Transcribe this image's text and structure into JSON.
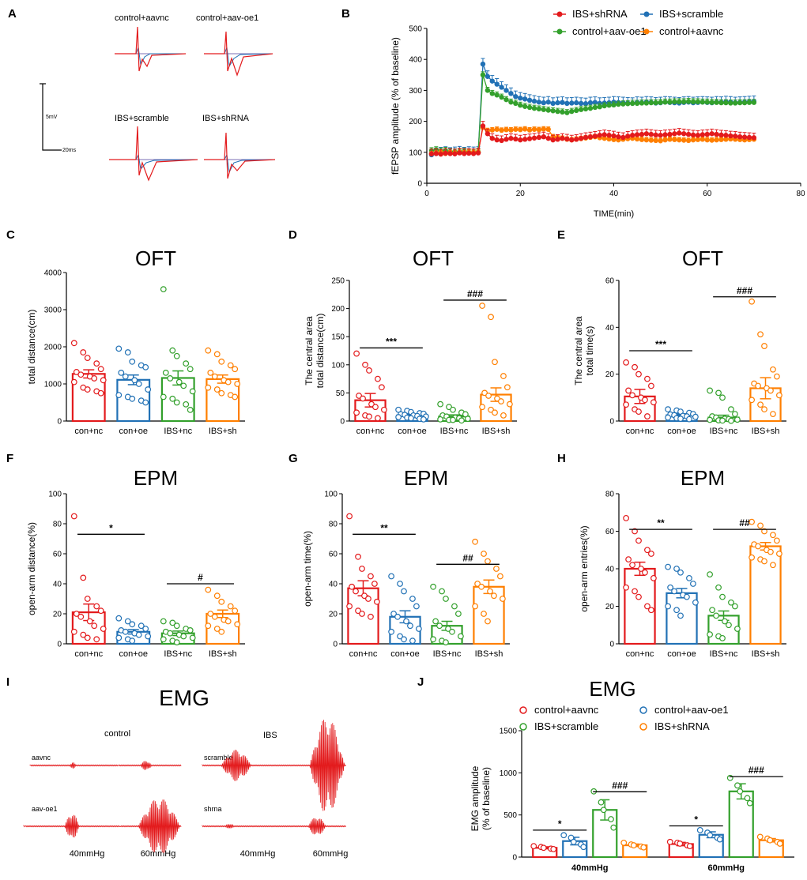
{
  "colors": {
    "red": "#e31a1c",
    "blue": "#2171b5",
    "green": "#33a02c",
    "orange": "#ff7f00",
    "purple": "#7b6fb5",
    "black": "#000000"
  },
  "panels": {
    "A": {
      "letter": "A",
      "labels": [
        "control+aavnc",
        "control+aav-oe1",
        "IBS+scramble",
        "IBS+shRNA"
      ],
      "scale_v": "5mV",
      "scale_t": "20ms"
    },
    "I": {
      "letter": "I",
      "title": "EMG",
      "group_control": "control",
      "group_ibs": "IBS",
      "trace_labels": [
        "aavnc",
        "scramble",
        "aav-oe1",
        "shrna"
      ],
      "pressure_labels": [
        "40mmHg",
        "60mmHg",
        "40mmHg",
        "60mmHg"
      ]
    }
  },
  "chart_data": [
    {
      "id": "B",
      "letter": "B",
      "type": "line",
      "title": "",
      "xlabel": "TIME(min)",
      "ylabel": "fEPSP amplitude (% of baseline)",
      "xlim": [
        0,
        80
      ],
      "ylim": [
        0,
        500
      ],
      "xticks": [
        0,
        20,
        40,
        60,
        80
      ],
      "yticks": [
        0,
        100,
        200,
        300,
        400,
        500
      ],
      "legend": [
        "IBS+shRNA",
        "IBS+scramble",
        "control+aav-oe1",
        "control+aavnc"
      ],
      "series": [
        {
          "name": "IBS+scramble",
          "color": "blue",
          "x_start": 1,
          "x_step": 1,
          "err": 18,
          "values": [
            92,
            96,
            98,
            100,
            97,
            99,
            101,
            98,
            100,
            99,
            100,
            385,
            345,
            330,
            320,
            310,
            300,
            290,
            280,
            275,
            272,
            268,
            265,
            262,
            260,
            262,
            258,
            260,
            261,
            258,
            259,
            260,
            258,
            257,
            260,
            261,
            258,
            259,
            260,
            262,
            261,
            260,
            259,
            258,
            261,
            260,
            262,
            261,
            259,
            260,
            262,
            261,
            260,
            259,
            261,
            262,
            260,
            261,
            262,
            261,
            260,
            262,
            261,
            263,
            262,
            260,
            261,
            262,
            263,
            264
          ]
        },
        {
          "name": "control+aav-oe1",
          "color": "green",
          "x_start": 1,
          "x_step": 1,
          "err": 10,
          "values": [
            105,
            108,
            104,
            106,
            102,
            101,
            100,
            103,
            99,
            100,
            101,
            350,
            300,
            290,
            285,
            278,
            270,
            262,
            258,
            252,
            248,
            245,
            242,
            240,
            238,
            236,
            234,
            232,
            230,
            228,
            232,
            235,
            238,
            240,
            242,
            245,
            247,
            250,
            252,
            253,
            255,
            256,
            257,
            258,
            258,
            259,
            259,
            260,
            260,
            261,
            262,
            262,
            263,
            263,
            263,
            264,
            263,
            263,
            262,
            262,
            261,
            261,
            260,
            260,
            259,
            259,
            260,
            260,
            261,
            261
          ]
        },
        {
          "name": "control+aavnc",
          "color": "orange",
          "x_start": 1,
          "x_step": 1,
          "err": 8,
          "values": [
            95,
            97,
            99,
            96,
            98,
            97,
            99,
            98,
            100,
            99,
            100,
            180,
            170,
            172,
            174,
            171,
            173,
            172,
            174,
            173,
            175,
            172,
            174,
            173,
            175,
            174,
            150,
            148,
            145,
            142,
            140,
            142,
            144,
            146,
            148,
            150,
            147,
            145,
            143,
            141,
            140,
            142,
            144,
            145,
            143,
            141,
            140,
            139,
            138,
            137,
            140,
            142,
            141,
            140,
            139,
            138,
            140,
            141,
            142,
            140,
            139,
            140,
            141,
            142,
            143,
            142,
            141,
            140,
            141,
            142
          ]
        },
        {
          "name": "IBS+shRNA",
          "color": "red",
          "x_start": 1,
          "x_step": 1,
          "err": 15,
          "values": [
            95,
            96,
            94,
            97,
            96,
            95,
            98,
            96,
            97,
            96,
            98,
            185,
            160,
            145,
            140,
            138,
            142,
            145,
            143,
            140,
            142,
            144,
            146,
            148,
            150,
            145,
            140,
            142,
            145,
            143,
            140,
            142,
            145,
            148,
            150,
            152,
            155,
            157,
            155,
            153,
            150,
            148,
            152,
            155,
            157,
            158,
            160,
            158,
            156,
            155,
            157,
            158,
            160,
            162,
            160,
            158,
            156,
            155,
            157,
            158,
            160,
            158,
            156,
            155,
            153,
            152,
            150,
            149,
            148,
            147
          ]
        }
      ]
    },
    {
      "id": "C",
      "letter": "C",
      "type": "bar",
      "title": "OFT",
      "ylabel": [
        "total distance(cm)"
      ],
      "ylim": [
        0,
        4000
      ],
      "yticks": [
        0,
        1000,
        2000,
        3000,
        4000
      ],
      "categories": [
        "con+nc",
        "con+oe",
        "IBS+nc",
        "IBS+sh"
      ],
      "values": [
        1270,
        1110,
        1160,
        1130
      ],
      "sem": [
        110,
        130,
        190,
        110
      ],
      "points": [
        [
          2100,
          1850,
          1700,
          1550,
          1400,
          1320,
          1250,
          1200,
          1150,
          1100,
          1050,
          900,
          850,
          800,
          750
        ],
        [
          1950,
          1850,
          1600,
          1500,
          1450,
          1300,
          1200,
          1100,
          1000,
          850,
          700,
          650,
          600,
          550,
          500
        ],
        [
          3550,
          1900,
          1750,
          1550,
          1400,
          1300,
          1150,
          1050,
          950,
          800,
          650,
          600,
          500,
          450,
          300
        ],
        [
          1900,
          1800,
          1600,
          1500,
          1400,
          1300,
          1200,
          1100,
          1050,
          1000,
          900,
          850,
          750,
          700,
          650
        ]
      ],
      "brackets": []
    },
    {
      "id": "D",
      "letter": "D",
      "type": "bar",
      "title": "OFT",
      "ylabel": [
        "The central area",
        "total distance(cm)"
      ],
      "ylim": [
        0,
        250
      ],
      "yticks": [
        0,
        50,
        100,
        150,
        200,
        250
      ],
      "categories": [
        "con+nc",
        "con+oe",
        "IBS+nc",
        "IBS+sh"
      ],
      "values": [
        37,
        10,
        8,
        47
      ],
      "sem": [
        12,
        2,
        3,
        12
      ],
      "points": [
        [
          120,
          100,
          90,
          75,
          60,
          45,
          40,
          30,
          25,
          20,
          15,
          10,
          8,
          5
        ],
        [
          20,
          18,
          16,
          14,
          13,
          12,
          11,
          10,
          9,
          8,
          7,
          6,
          5,
          4,
          3
        ],
        [
          30,
          25,
          20,
          15,
          12,
          10,
          8,
          6,
          5,
          4,
          3,
          2,
          2,
          1
        ],
        [
          205,
          185,
          105,
          80,
          60,
          50,
          45,
          40,
          35,
          30,
          25,
          20,
          15,
          10
        ]
      ],
      "brackets": [
        {
          "from": 0,
          "to": 1,
          "y": 130,
          "label": "***"
        },
        {
          "from": 2,
          "to": 3,
          "y": 215,
          "label": "###"
        }
      ]
    },
    {
      "id": "E",
      "letter": "E",
      "type": "bar",
      "title": "OFT",
      "ylabel": [
        "The central area",
        "total time(s)"
      ],
      "ylim": [
        0,
        60
      ],
      "yticks": [
        0,
        20,
        40,
        60
      ],
      "categories": [
        "con+nc",
        "con+oe",
        "IBS+nc",
        "IBS+sh"
      ],
      "values": [
        10.5,
        2.5,
        1.5,
        14
      ],
      "sem": [
        3,
        0.6,
        1,
        4.5
      ],
      "points": [
        [
          25,
          23,
          20,
          18,
          15,
          13,
          11,
          10,
          9,
          8,
          7,
          5,
          4,
          2
        ],
        [
          5,
          4.5,
          4,
          3.5,
          3,
          2.8,
          2.5,
          2.2,
          2,
          1.8,
          1.5,
          1.2,
          1,
          0.8
        ],
        [
          13,
          12,
          10,
          5,
          3,
          2,
          1.5,
          1,
          0.8,
          0.6,
          0.5,
          0.3,
          0.2,
          0.1
        ],
        [
          51,
          37,
          32,
          22,
          19,
          16,
          15,
          14,
          13,
          11,
          9,
          7,
          5,
          3
        ]
      ],
      "brackets": [
        {
          "from": 0,
          "to": 1,
          "y": 30,
          "label": "***"
        },
        {
          "from": 2,
          "to": 3,
          "y": 53,
          "label": "###"
        }
      ]
    },
    {
      "id": "F",
      "letter": "F",
      "type": "bar",
      "title": "EPM",
      "ylabel": [
        "open-arm distance(%)"
      ],
      "ylim": [
        0,
        100
      ],
      "yticks": [
        0,
        20,
        40,
        60,
        80,
        100
      ],
      "categories": [
        "con+nc",
        "con+oe",
        "IBS+nc",
        "IBS+sh"
      ],
      "values": [
        21,
        8,
        7,
        20
      ],
      "sem": [
        5.5,
        1.5,
        1.5,
        2.5
      ],
      "points": [
        [
          85,
          44,
          30,
          25,
          22,
          20,
          18,
          15,
          12,
          10,
          8,
          6,
          4,
          3
        ],
        [
          17,
          15,
          13,
          12,
          10,
          9,
          8,
          7,
          6,
          5,
          4,
          3,
          2
        ],
        [
          15,
          14,
          12,
          10,
          9,
          8,
          7,
          6,
          5,
          4,
          3,
          2,
          1
        ],
        [
          36,
          32,
          28,
          25,
          22,
          20,
          18,
          16,
          15,
          13,
          12,
          10,
          8
        ]
      ],
      "brackets": [
        {
          "from": 0,
          "to": 1,
          "y": 73,
          "label": "*"
        },
        {
          "from": 2,
          "to": 3,
          "y": 40,
          "label": "#"
        }
      ]
    },
    {
      "id": "G",
      "letter": "G",
      "type": "bar",
      "title": "EPM",
      "ylabel": [
        "open-arm time(%)"
      ],
      "ylim": [
        0,
        100
      ],
      "yticks": [
        0,
        20,
        40,
        60,
        80,
        100
      ],
      "categories": [
        "con+nc",
        "con+oe",
        "IBS+nc",
        "IBS+sh"
      ],
      "values": [
        37,
        18,
        12,
        38
      ],
      "sem": [
        5,
        4,
        3,
        4.5
      ],
      "points": [
        [
          85,
          58,
          50,
          45,
          40,
          38,
          35,
          32,
          30,
          28,
          25,
          22,
          20,
          18
        ],
        [
          45,
          40,
          35,
          30,
          25,
          20,
          18,
          15,
          12,
          10,
          8,
          5,
          3,
          2
        ],
        [
          38,
          35,
          30,
          25,
          20,
          15,
          12,
          10,
          8,
          5,
          3,
          2,
          1
        ],
        [
          68,
          60,
          55,
          50,
          45,
          40,
          38,
          35,
          32,
          30,
          25,
          20,
          15
        ]
      ],
      "brackets": [
        {
          "from": 0,
          "to": 1,
          "y": 73,
          "label": "**"
        },
        {
          "from": 2,
          "to": 3,
          "y": 53,
          "label": "##"
        }
      ]
    },
    {
      "id": "H",
      "letter": "H",
      "type": "bar",
      "title": "EPM",
      "ylabel": [
        "open-arm entries(%)"
      ],
      "ylim": [
        0,
        80
      ],
      "yticks": [
        0,
        20,
        40,
        60,
        80
      ],
      "categories": [
        "con+nc",
        "con+oe",
        "IBS+nc",
        "IBS+sh"
      ],
      "values": [
        40,
        27,
        15,
        52
      ],
      "sem": [
        3.5,
        2.5,
        2.5,
        2
      ],
      "points": [
        [
          67,
          60,
          55,
          50,
          48,
          45,
          42,
          40,
          38,
          35,
          30,
          28,
          25,
          20,
          18
        ],
        [
          41,
          40,
          38,
          35,
          32,
          30,
          28,
          26,
          25,
          22,
          20,
          18,
          15
        ],
        [
          37,
          30,
          25,
          22,
          20,
          18,
          15,
          12,
          10,
          8,
          5,
          4,
          3
        ],
        [
          65,
          63,
          60,
          58,
          55,
          53,
          52,
          50,
          49,
          48,
          46,
          45,
          44,
          42
        ]
      ],
      "brackets": [
        {
          "from": 0,
          "to": 1,
          "y": 61,
          "label": "**"
        },
        {
          "from": 2,
          "to": 3,
          "y": 61,
          "label": "##"
        }
      ]
    },
    {
      "id": "J",
      "letter": "J",
      "type": "bar",
      "title": "EMG",
      "ylabel": [
        "EMG amplitude",
        "(% of baseline)"
      ],
      "ylim": [
        0,
        1500
      ],
      "yticks": [
        0,
        500,
        1000,
        1500
      ],
      "groups": [
        "40mmHg",
        "60mmHg"
      ],
      "legend": [
        "control+aavnc",
        "control+aav-oe1",
        "IBS+scramble",
        "IBS+shRNA"
      ],
      "series": [
        {
          "name": "control+aavnc",
          "color": "red",
          "values": [
            110,
            155
          ],
          "sem": [
            12,
            20
          ],
          "points": [
            [
              130,
              120,
              110,
              100,
              95
            ],
            [
              180,
              170,
              160,
              140,
              130
            ]
          ]
        },
        {
          "name": "control+aav-oe1",
          "color": "blue",
          "values": [
            190,
            265
          ],
          "sem": [
            45,
            35
          ],
          "points": [
            [
              260,
              230,
              180,
              150,
              120
            ],
            [
              320,
              290,
              260,
              230,
              210
            ]
          ]
        },
        {
          "name": "IBS+scramble",
          "color": "green",
          "values": [
            560,
            780
          ],
          "sem": [
            120,
            90
          ],
          "points": [
            [
              780,
              650,
              560,
              450,
              350
            ],
            [
              940,
              850,
              780,
              700,
              640
            ]
          ]
        },
        {
          "name": "IBS+shRNA",
          "color": "orange",
          "values": [
            140,
            200
          ],
          "sem": [
            15,
            20
          ],
          "points": [
            [
              170,
              150,
              140,
              125,
              115
            ],
            [
              240,
              220,
              200,
              180,
              160
            ]
          ]
        }
      ],
      "brackets": [
        {
          "group": 0,
          "from": 0,
          "to": 1,
          "y": 320,
          "label": "*"
        },
        {
          "group": 0,
          "from": 2,
          "to": 3,
          "y": 775,
          "label": "###"
        },
        {
          "group": 1,
          "from": 0,
          "to": 1,
          "y": 370,
          "label": "*"
        },
        {
          "group": 1,
          "from": 2,
          "to": 3,
          "y": 955,
          "label": "###"
        }
      ]
    }
  ]
}
